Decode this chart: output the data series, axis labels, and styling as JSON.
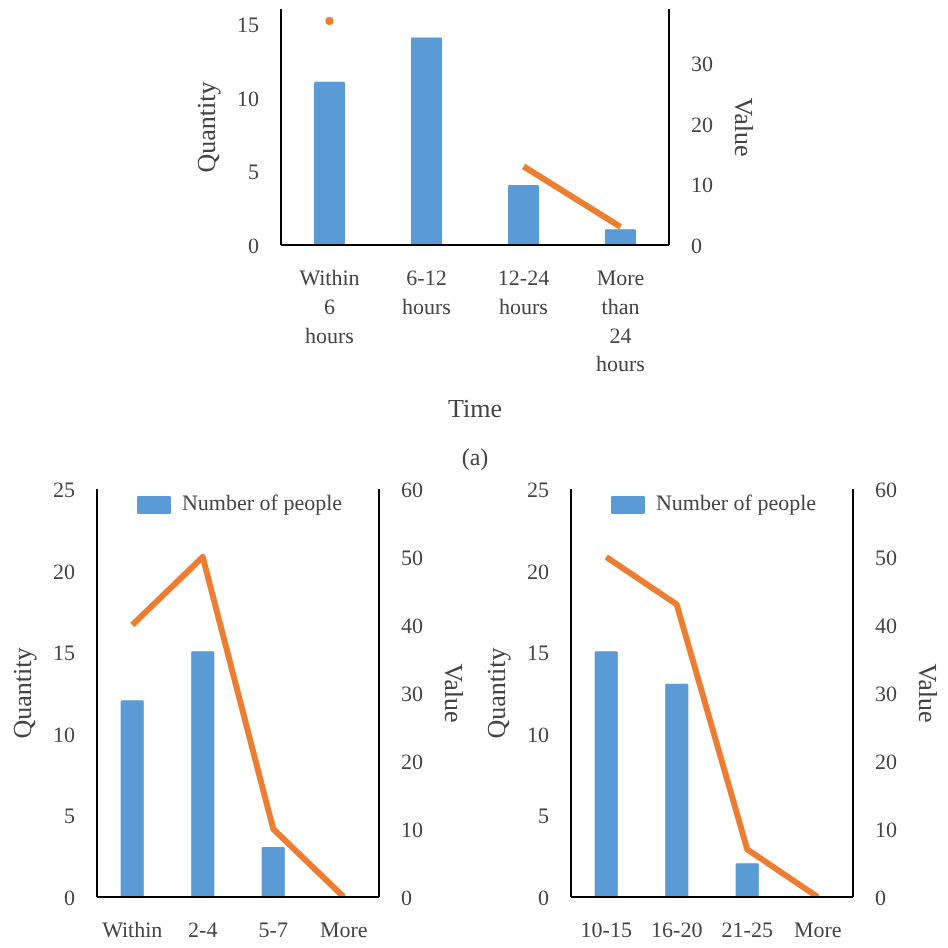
{
  "chart_data": [
    {
      "type": "bar",
      "categories": [
        "Within 6 hours",
        "6-12 hours",
        "12-24 hours",
        "More than 24 hours"
      ],
      "xlabel": "Time",
      "ylabel": "Quantity",
      "y2label": "Value",
      "annotations": [
        "(a)"
      ],
      "ylim": [
        0,
        16
      ],
      "yticks": [
        0,
        5,
        10,
        15
      ],
      "y2lim": [
        0,
        39
      ],
      "y2ticks": [
        0,
        10,
        20,
        30
      ],
      "legend": false,
      "grid": false,
      "series": [
        {
          "type": "bar",
          "color": "#5b9bd5",
          "values": [
            11,
            14,
            4,
            1
          ]
        },
        {
          "type": "line",
          "axis": "y2",
          "color": "#ed7d31",
          "values": [
            37,
            null,
            13,
            3
          ]
        }
      ]
    },
    {
      "type": "bar",
      "categories": [
        "Within",
        "2-4",
        "5-7",
        "More"
      ],
      "ylabel": "Quantity",
      "y2label": "Value",
      "ylim": [
        0,
        25
      ],
      "yticks": [
        0,
        5,
        10,
        15,
        20,
        25
      ],
      "y2lim": [
        0,
        60
      ],
      "y2ticks": [
        0,
        10,
        20,
        30,
        40,
        50,
        60
      ],
      "legend": "top",
      "grid": false,
      "series": [
        {
          "type": "bar",
          "name": "Number of people",
          "color": "#5b9bd5",
          "values": [
            12,
            15,
            3,
            0
          ]
        },
        {
          "type": "line",
          "axis": "y2",
          "color": "#ed7d31",
          "values": [
            40,
            50,
            10,
            0
          ]
        }
      ]
    },
    {
      "type": "bar",
      "categories": [
        "10-15",
        "16-20",
        "21-25",
        "More"
      ],
      "ylabel": "Quantity",
      "y2label": "Value",
      "ylim": [
        0,
        25
      ],
      "yticks": [
        0,
        5,
        10,
        15,
        20,
        25
      ],
      "y2lim": [
        0,
        60
      ],
      "y2ticks": [
        0,
        10,
        20,
        30,
        40,
        50,
        60
      ],
      "legend": "top",
      "grid": false,
      "series": [
        {
          "type": "bar",
          "name": "Number of people",
          "color": "#5b9bd5",
          "values": [
            15,
            13,
            2,
            0
          ]
        },
        {
          "type": "line",
          "axis": "y2",
          "color": "#ed7d31",
          "values": [
            50,
            43,
            7,
            0
          ]
        }
      ]
    }
  ]
}
